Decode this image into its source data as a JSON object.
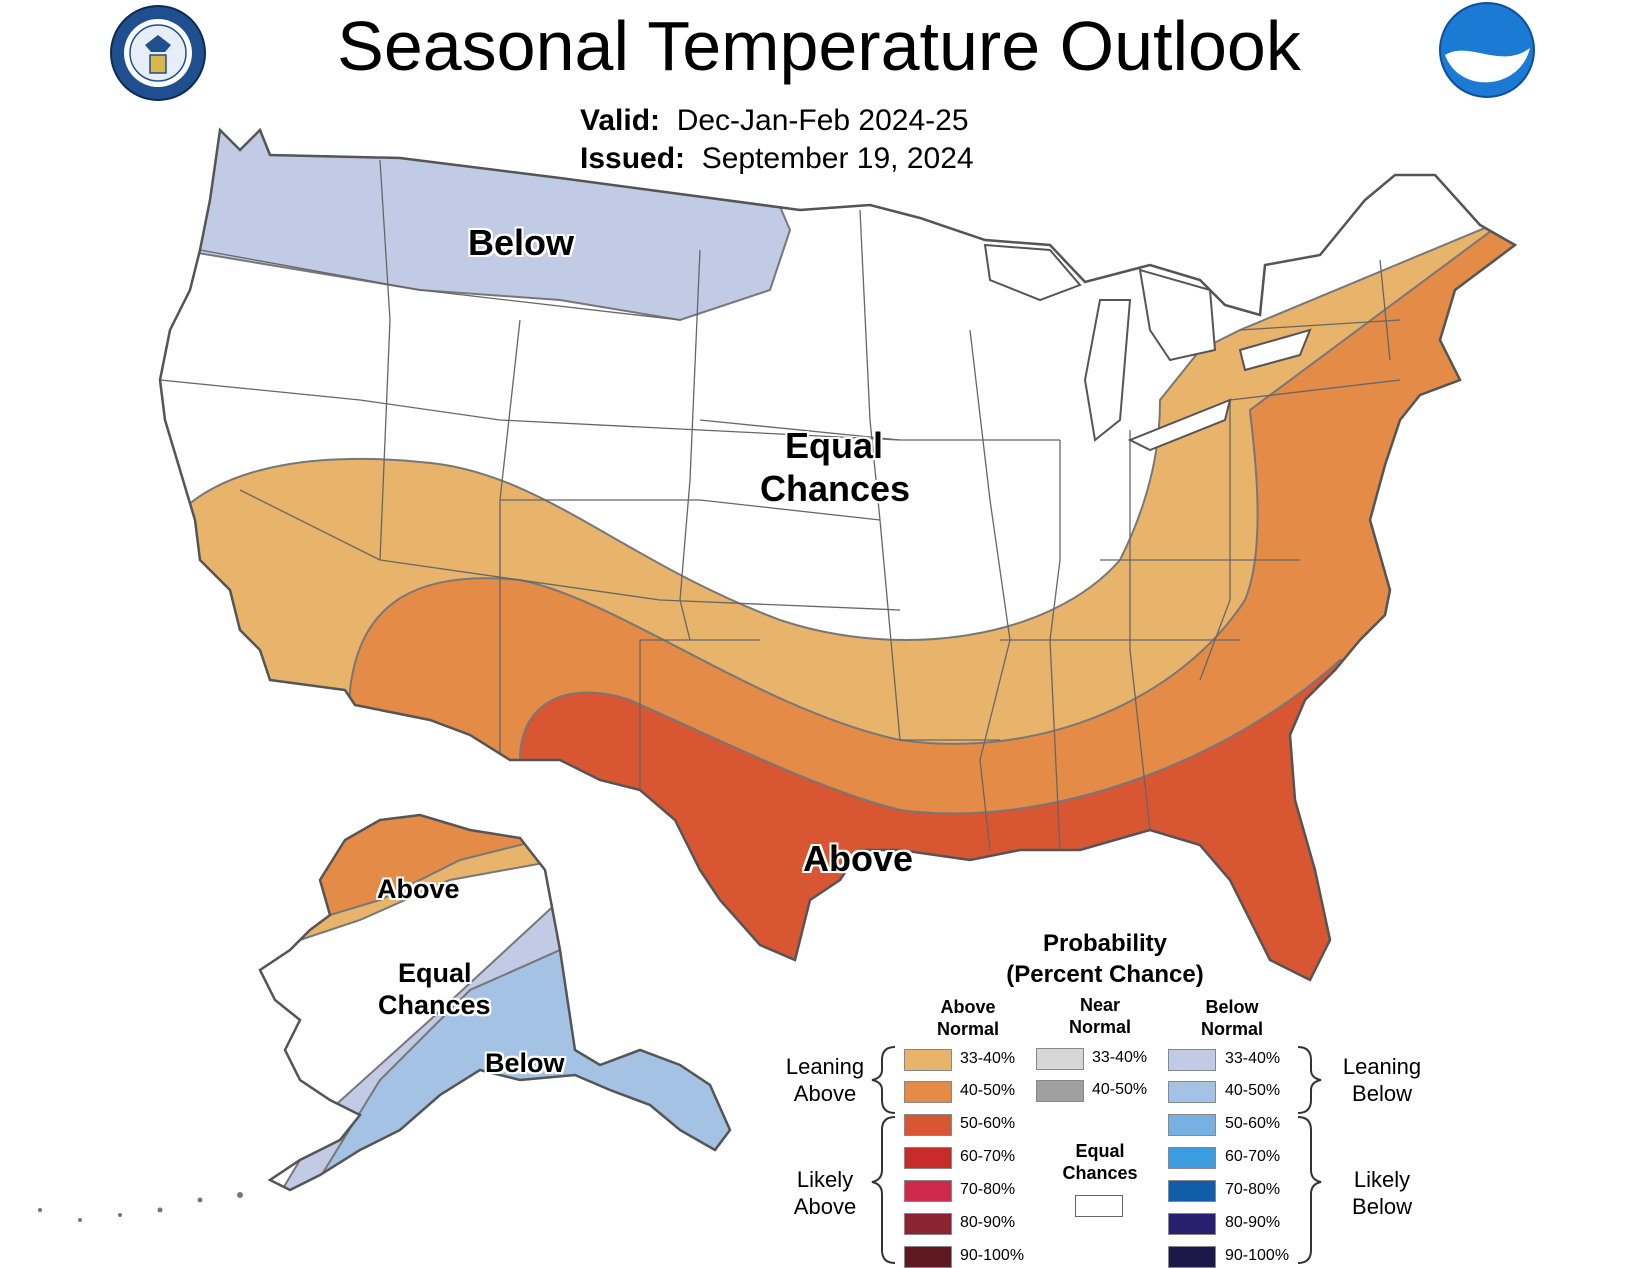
{
  "header": {
    "title": "Seasonal Temperature Outlook",
    "valid_label": "Valid:",
    "valid_value": "Dec-Jan-Feb 2024-25",
    "issued_label": "Issued:",
    "issued_value": "September 19, 2024"
  },
  "logos": {
    "left": {
      "icon": "department-of-commerce-seal-icon",
      "text": "DEPARTMENT OF COMMERCE · UNITED STATES OF AMERICA",
      "color": "#1f4f8f"
    },
    "right": {
      "icon": "noaa-logo-icon",
      "text": "NOAA",
      "color": "#1a7ad4"
    }
  },
  "map": {
    "conus_labels": {
      "below": "Below",
      "equal_1": "Equal",
      "equal_2": "Chances",
      "above": "Above"
    },
    "alaska_labels": {
      "above": "Above",
      "equal_1": "Equal",
      "equal_2": "Chances",
      "below": "Below"
    },
    "category_colors": {
      "below_33_40": "#c2cbe6",
      "below_40_50": "#a4c2e3",
      "above_33_40": "#e8b46b",
      "above_40_50": "#e48b48",
      "above_50_60": "#d95632"
    }
  },
  "legend": {
    "title_1": "Probability",
    "title_2": "(Percent Chance)",
    "above_head_1": "Above",
    "above_head_2": "Normal",
    "near_head_1": "Near",
    "near_head_2": "Normal",
    "below_head_1": "Below",
    "below_head_2": "Normal",
    "above_items": [
      {
        "label": "33-40%",
        "color": "#e8b46b"
      },
      {
        "label": "40-50%",
        "color": "#e48b48"
      },
      {
        "label": "50-60%",
        "color": "#d95632"
      },
      {
        "label": "60-70%",
        "color": "#c92a2a"
      },
      {
        "label": "70-80%",
        "color": "#cf2a4a"
      },
      {
        "label": "80-90%",
        "color": "#8c2333"
      },
      {
        "label": "90-100%",
        "color": "#5e1a20"
      }
    ],
    "near_items": [
      {
        "label": "33-40%",
        "color": "#d7d7d7"
      },
      {
        "label": "40-50%",
        "color": "#a0a0a0"
      }
    ],
    "equal_1": "Equal",
    "equal_2": "Chances",
    "equal_color": "#ffffff",
    "below_items": [
      {
        "label": "33-40%",
        "color": "#c2cbe6"
      },
      {
        "label": "40-50%",
        "color": "#a4c2e3"
      },
      {
        "label": "50-60%",
        "color": "#75b2e3"
      },
      {
        "label": "60-70%",
        "color": "#3b9de0"
      },
      {
        "label": "70-80%",
        "color": "#0f5da9"
      },
      {
        "label": "80-90%",
        "color": "#2a1f6e"
      },
      {
        "label": "90-100%",
        "color": "#1c1848"
      }
    ],
    "leaning_above_1": "Leaning",
    "leaning_above_2": "Above",
    "likely_above_1": "Likely",
    "likely_above_2": "Above",
    "leaning_below_1": "Leaning",
    "leaning_below_2": "Below",
    "likely_below_1": "Likely",
    "likely_below_2": "Below"
  }
}
